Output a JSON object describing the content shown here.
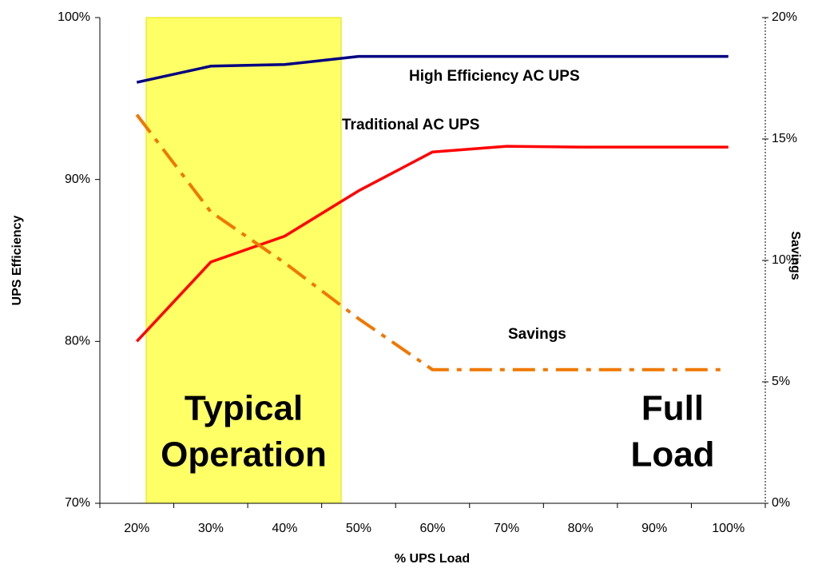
{
  "chart_data": {
    "type": "line",
    "xlabel": "% UPS Load",
    "ylabel": "UPS Efficiency",
    "y2label": "Savings",
    "categories": [
      "20%",
      "30%",
      "40%",
      "50%",
      "60%",
      "70%",
      "80%",
      "90%",
      "100%"
    ],
    "series": [
      {
        "name": "High Efficiency AC UPS",
        "color": "#000080",
        "values": [
          96,
          97,
          97.1,
          97.6,
          97.6,
          97.6,
          97.6,
          97.6,
          97.6
        ]
      },
      {
        "name": "Traditional AC UPS",
        "color": "#ff0000",
        "values": [
          80,
          84.9,
          86.5,
          89.3,
          91.7,
          92.05,
          92,
          92,
          92
        ]
      },
      {
        "name": "Savings",
        "color": "#f07800",
        "axis": "y2",
        "values": [
          16,
          12,
          9.9,
          7.6,
          5.5,
          5.5,
          5.5,
          5.5,
          5.5
        ]
      }
    ],
    "ylim": [
      70,
      100
    ],
    "yticks": [
      {
        "value": 70,
        "label": "70%"
      },
      {
        "value": 80,
        "label": "80%"
      },
      {
        "value": 90,
        "label": "90%"
      },
      {
        "value": 100,
        "label": "100%"
      }
    ],
    "y2lim": [
      0,
      20
    ],
    "y2ticks": [
      {
        "value": 0,
        "label": "0%"
      },
      {
        "value": 5,
        "label": "5%"
      },
      {
        "value": 10,
        "label": "10%"
      },
      {
        "value": 15,
        "label": "15%"
      },
      {
        "value": 20,
        "label": "20%"
      }
    ],
    "annotations": [
      [
        "Typical",
        "Operation"
      ],
      [
        "Full",
        "Load"
      ]
    ],
    "grid": false
  }
}
